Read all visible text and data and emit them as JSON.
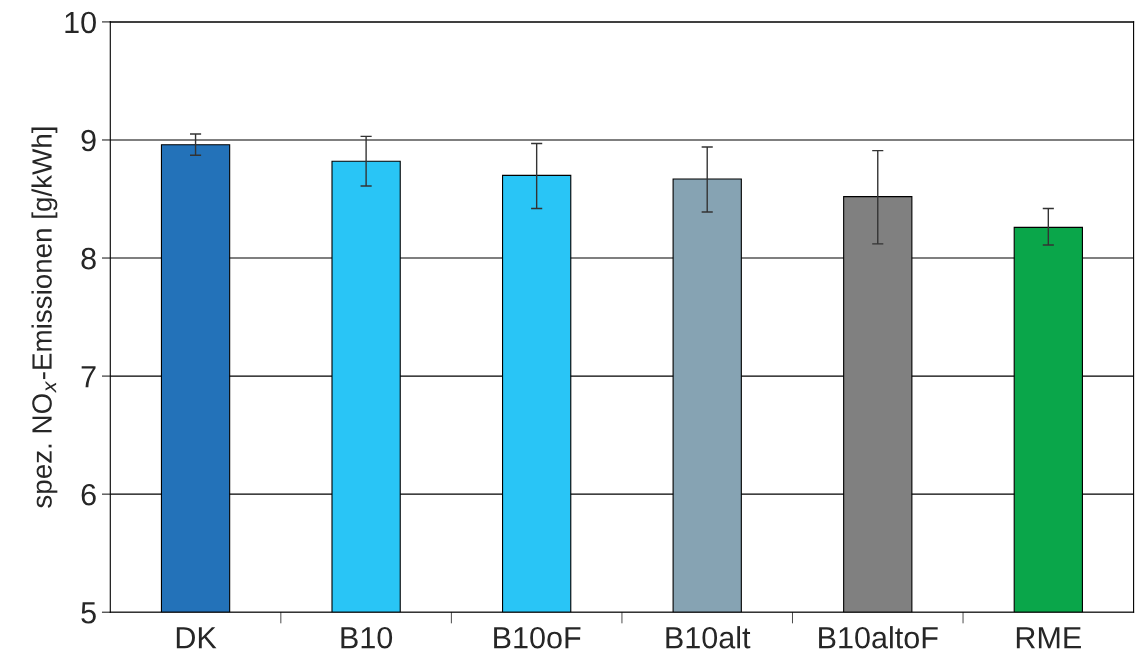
{
  "chart_data": {
    "type": "bar",
    "ylabel": "spez. NO$_{x}$-Emissionen [g/kWh]",
    "categories": [
      "DK",
      "B10",
      "B10oF",
      "B10alt",
      "B10altoF",
      "RME"
    ],
    "values": [
      8.96,
      8.82,
      8.7,
      8.67,
      8.52,
      8.26
    ],
    "errors": [
      [
        8.87,
        9.05
      ],
      [
        8.61,
        9.03
      ],
      [
        8.42,
        8.97
      ],
      [
        8.39,
        8.94
      ],
      [
        8.12,
        8.91
      ],
      [
        8.11,
        8.42
      ]
    ],
    "colors": [
      "#2372b9",
      "#29c5f6",
      "#29c5f6",
      "#86a3b3",
      "#808080",
      "#0aa64a"
    ],
    "ylim": [
      5,
      10
    ],
    "yticks": [
      5,
      6,
      7,
      8,
      9,
      10
    ],
    "grid": "y"
  }
}
